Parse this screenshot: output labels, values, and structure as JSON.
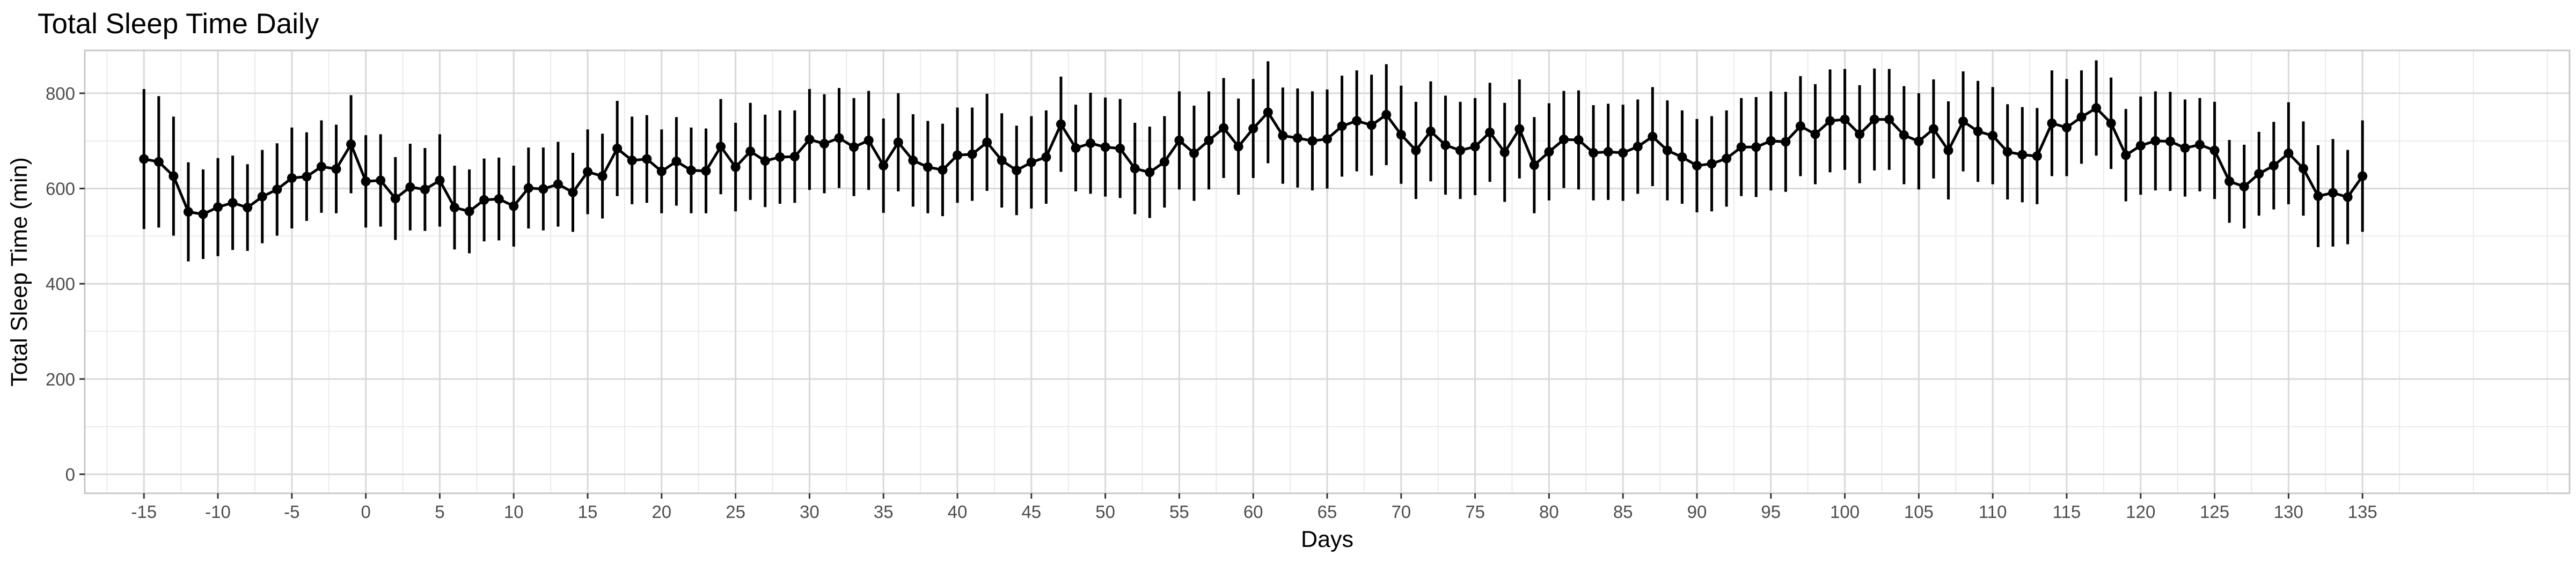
{
  "chart_data": {
    "type": "line",
    "title": "Total Sleep Time Daily",
    "xlabel": "Days",
    "ylabel": "Total Sleep Time (min)",
    "xlim": [
      -19,
      149
    ],
    "ylim": [
      -40,
      890
    ],
    "grid": true,
    "legend": "none",
    "x_ticks": [
      -15,
      -10,
      -5,
      0,
      5,
      10,
      15,
      20,
      25,
      30,
      35,
      40,
      45,
      50,
      55,
      60,
      65,
      70,
      75,
      80,
      85,
      90,
      95,
      100,
      105,
      110,
      115,
      120,
      125,
      130,
      135
    ],
    "y_ticks": [
      0,
      200,
      400,
      600,
      800
    ],
    "x_start": -15,
    "x_end": 135,
    "y": [
      662,
      656,
      626,
      551,
      546,
      561,
      570,
      560,
      583,
      598,
      622,
      625,
      646,
      641,
      693,
      615,
      617,
      579,
      603,
      598,
      617,
      560,
      552,
      576,
      578,
      563,
      601,
      599,
      609,
      592,
      635,
      626,
      684,
      659,
      662,
      636,
      657,
      638,
      637,
      688,
      645,
      678,
      658,
      666,
      667,
      703,
      694,
      706,
      687,
      701,
      648,
      697,
      659,
      645,
      639,
      670,
      672,
      697,
      659,
      638,
      655,
      666,
      735,
      685,
      695,
      687,
      684,
      642,
      634,
      656,
      701,
      674,
      701,
      727,
      688,
      726,
      760,
      711,
      706,
      700,
      704,
      731,
      742,
      733,
      755,
      713,
      680,
      720,
      691,
      680,
      688,
      718,
      676,
      725,
      649,
      677,
      703,
      702,
      675,
      677,
      675,
      688,
      709,
      680,
      666,
      648,
      652,
      663,
      687,
      687,
      700,
      698,
      731,
      714,
      742,
      745,
      714,
      745,
      745,
      712,
      699,
      725,
      680,
      741,
      720,
      711,
      677,
      671,
      668,
      737,
      728,
      750,
      769,
      737,
      670,
      690,
      700,
      699,
      685,
      692,
      680,
      615,
      604,
      631,
      648,
      674,
      642,
      584,
      591,
      582,
      626
    ],
    "y_err": [
      147,
      138,
      125,
      104,
      94,
      103,
      99,
      91,
      98,
      97,
      106,
      93,
      97,
      93,
      103,
      97,
      97,
      87,
      91,
      87,
      97,
      88,
      88,
      87,
      87,
      85,
      85,
      87,
      89,
      83,
      89,
      89,
      100,
      92,
      92,
      88,
      93,
      90,
      89,
      100,
      93,
      102,
      97,
      98,
      97,
      106,
      104,
      105,
      103,
      104,
      99,
      103,
      97,
      97,
      97,
      100,
      98,
      102,
      99,
      94,
      97,
      98,
      100,
      91,
      106,
      104,
      104,
      96,
      96,
      96,
      103,
      100,
      103,
      105,
      101,
      104,
      107,
      101,
      104,
      104,
      104,
      106,
      106,
      106,
      106,
      103,
      102,
      105,
      104,
      102,
      102,
      104,
      104,
      104,
      101,
      102,
      102,
      104,
      100,
      101,
      101,
      99,
      104,
      105,
      98,
      98,
      100,
      101,
      103,
      105,
      104,
      105,
      105,
      105,
      108,
      106,
      103,
      107,
      106,
      103,
      101,
      104,
      103,
      105,
      106,
      102,
      100,
      100,
      101,
      111,
      102,
      98,
      100,
      96,
      97,
      103,
      104,
      104,
      102,
      98,
      102,
      87,
      88,
      88,
      92,
      107,
      99,
      107,
      113,
      99,
      117
    ]
  }
}
